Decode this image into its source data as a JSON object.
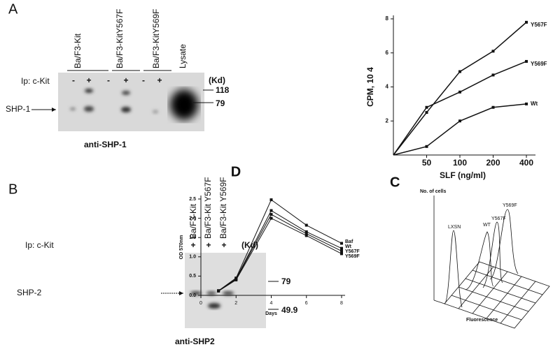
{
  "panels": {
    "A": {
      "label": "A",
      "lanes": [
        "Ba/F3-Kit",
        "Ba/F3-KitY567F",
        "Ba/F3-KitY569F",
        "Lysate"
      ],
      "ip": "Ip: c-Kit",
      "signs": [
        "-",
        "+",
        "-",
        "+",
        "-",
        "+"
      ],
      "kd": "(Kd)",
      "markers": [
        "118",
        "79"
      ],
      "band": "SHP-1",
      "antibody": "anti-SHP-1"
    },
    "B": {
      "label": "B",
      "lanes": [
        "Ba/F3-Kit",
        "Ba/F3-Kit Y567F",
        "Ba/F3-Kit Y569F"
      ],
      "ip": "Ip: c-Kit",
      "signs": [
        "+",
        "+",
        "+"
      ],
      "kd": "(Kd)",
      "markers": [
        "79",
        "49.9"
      ],
      "band": "SHP-2",
      "antibody": "anti-SHP2"
    },
    "C": {
      "label": "C",
      "y_label": "No. of cells",
      "x_label": "Fluorescence",
      "peaks": [
        "LXSN",
        "WT",
        "Y567F",
        "Y569F"
      ]
    }
  },
  "chart_data": [
    {
      "type": "line",
      "x_label": "SLF (ng/ml)",
      "y_label": "CPM, 10 4",
      "categories": [
        null,
        "50",
        "100",
        "200",
        "400"
      ],
      "ylim": [
        0,
        8
      ],
      "yticks": [
        2,
        4,
        6,
        8
      ],
      "series": [
        {
          "name": "Y567F",
          "color": "#111111",
          "values": [
            0,
            2.5,
            4.9,
            6.1,
            7.8
          ]
        },
        {
          "name": "Y569F",
          "color": "#111111",
          "values": [
            0,
            2.8,
            3.7,
            4.7,
            5.5
          ]
        },
        {
          "name": "Wt",
          "color": "#111111",
          "values": [
            0,
            0.5,
            2.0,
            2.8,
            3.0
          ]
        }
      ]
    },
    {
      "type": "line",
      "title": "D",
      "x_label": "Days",
      "y_label": "OD 570nm",
      "x": [
        1,
        2,
        4,
        6,
        8
      ],
      "xlim": [
        0,
        8
      ],
      "xticks": [
        0,
        2,
        4,
        6,
        8
      ],
      "ylim": [
        0,
        2.5
      ],
      "yticks": [
        {
          "value": 0,
          "label": "0.0"
        },
        0.5,
        {
          "value": 1,
          "label": "1.0"
        },
        1.5,
        {
          "value": 2,
          "label": "2.0"
        },
        2.5
      ],
      "series": [
        {
          "name": "Baf",
          "color": "#111111",
          "values": [
            0.12,
            0.45,
            2.48,
            1.82,
            1.35
          ]
        },
        {
          "name": "Wt",
          "color": "#111111",
          "values": [
            0.12,
            0.43,
            2.2,
            1.65,
            1.22
          ]
        },
        {
          "name": "Y567F",
          "color": "#111111",
          "values": [
            0.12,
            0.42,
            2.1,
            1.6,
            1.15
          ]
        },
        {
          "name": "Y569F",
          "color": "#111111",
          "values": [
            0.11,
            0.4,
            2.0,
            1.55,
            1.08
          ]
        }
      ]
    }
  ]
}
